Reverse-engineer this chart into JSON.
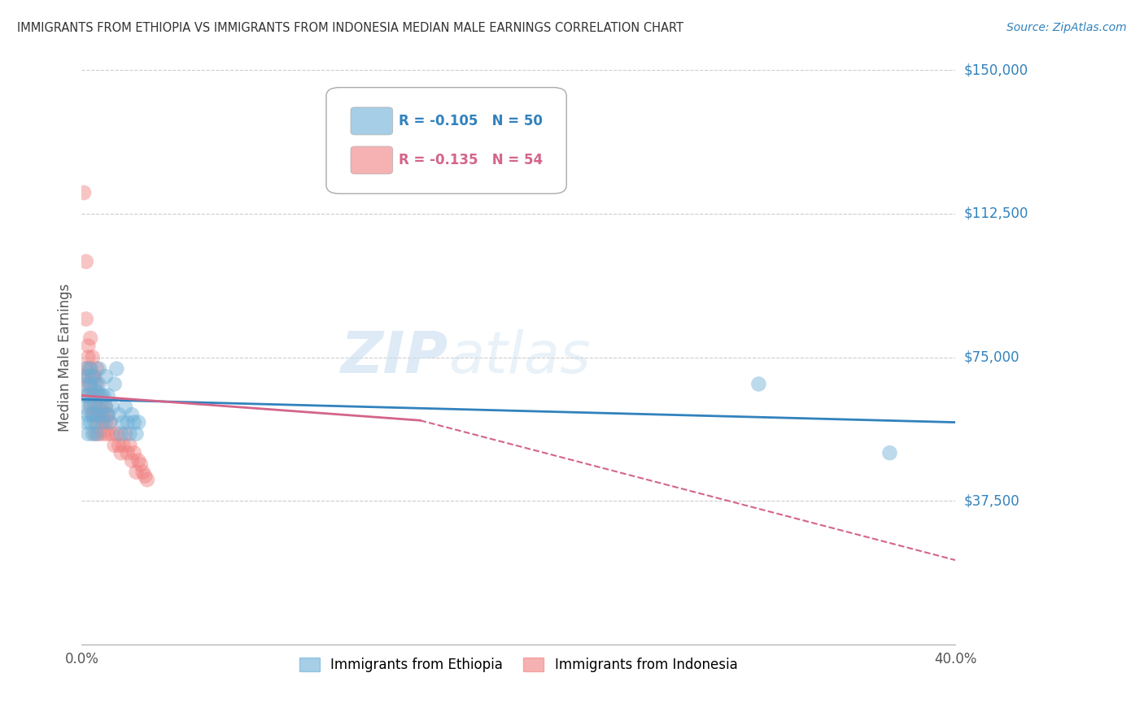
{
  "title": "IMMIGRANTS FROM ETHIOPIA VS IMMIGRANTS FROM INDONESIA MEDIAN MALE EARNINGS CORRELATION CHART",
  "source": "Source: ZipAtlas.com",
  "ylabel": "Median Male Earnings",
  "yticks": [
    0,
    37500,
    75000,
    112500,
    150000
  ],
  "ytick_labels": [
    "",
    "$37,500",
    "$75,000",
    "$112,500",
    "$150,000"
  ],
  "xlim": [
    0.0,
    0.4
  ],
  "ylim": [
    0,
    150000
  ],
  "legend_ethiopia_R": -0.105,
  "legend_ethiopia_N": 50,
  "legend_indonesia_R": -0.135,
  "legend_indonesia_N": 54,
  "scatter_ethiopia_x": [
    0.001,
    0.001,
    0.002,
    0.002,
    0.002,
    0.003,
    0.003,
    0.003,
    0.003,
    0.004,
    0.004,
    0.004,
    0.004,
    0.005,
    0.005,
    0.005,
    0.005,
    0.006,
    0.006,
    0.006,
    0.007,
    0.007,
    0.007,
    0.008,
    0.008,
    0.008,
    0.009,
    0.009,
    0.01,
    0.01,
    0.011,
    0.011,
    0.012,
    0.012,
    0.013,
    0.014,
    0.015,
    0.016,
    0.017,
    0.018,
    0.019,
    0.02,
    0.021,
    0.022,
    0.023,
    0.024,
    0.025,
    0.026,
    0.31,
    0.37
  ],
  "scatter_ethiopia_y": [
    62000,
    68000,
    65000,
    58000,
    72000,
    60000,
    55000,
    70000,
    65000,
    58000,
    63000,
    68000,
    72000,
    55000,
    60000,
    65000,
    70000,
    58000,
    63000,
    68000,
    55000,
    60000,
    66000,
    62000,
    68000,
    72000,
    65000,
    60000,
    58000,
    65000,
    62000,
    70000,
    65000,
    60000,
    58000,
    62000,
    68000,
    72000,
    60000,
    55000,
    58000,
    62000,
    58000,
    55000,
    60000,
    58000,
    55000,
    58000,
    68000,
    50000
  ],
  "scatter_indonesia_x": [
    0.001,
    0.001,
    0.002,
    0.002,
    0.002,
    0.003,
    0.003,
    0.003,
    0.003,
    0.004,
    0.004,
    0.004,
    0.004,
    0.005,
    0.005,
    0.005,
    0.005,
    0.006,
    0.006,
    0.006,
    0.006,
    0.007,
    0.007,
    0.007,
    0.007,
    0.008,
    0.008,
    0.008,
    0.009,
    0.009,
    0.01,
    0.01,
    0.011,
    0.011,
    0.012,
    0.012,
    0.013,
    0.014,
    0.015,
    0.016,
    0.017,
    0.018,
    0.019,
    0.02,
    0.021,
    0.022,
    0.023,
    0.024,
    0.025,
    0.026,
    0.027,
    0.028,
    0.029,
    0.03
  ],
  "scatter_indonesia_y": [
    118000,
    70000,
    100000,
    85000,
    72000,
    78000,
    68000,
    75000,
    65000,
    72000,
    80000,
    68000,
    62000,
    70000,
    65000,
    75000,
    60000,
    65000,
    70000,
    60000,
    55000,
    68000,
    62000,
    72000,
    58000,
    65000,
    60000,
    55000,
    62000,
    58000,
    60000,
    55000,
    58000,
    62000,
    55000,
    60000,
    58000,
    55000,
    52000,
    55000,
    52000,
    50000,
    52000,
    55000,
    50000,
    52000,
    48000,
    50000,
    45000,
    48000,
    47000,
    45000,
    44000,
    43000
  ],
  "trendline_blue_x0": 0.0,
  "trendline_blue_x1": 0.4,
  "trendline_blue_y0": 64000,
  "trendline_blue_y1": 58000,
  "trendline_pink_solid_x0": 0.0,
  "trendline_pink_solid_x1": 0.155,
  "trendline_pink_solid_y0": 65000,
  "trendline_pink_solid_y1": 58500,
  "trendline_pink_dash_x0": 0.155,
  "trendline_pink_dash_x1": 0.4,
  "trendline_pink_dash_y0": 58500,
  "trendline_pink_dash_y1": 22000,
  "watermark_zip": "ZIP",
  "watermark_atlas": "atlas",
  "bg_color": "#ffffff",
  "scatter_color_ethiopia": "#6baed6",
  "scatter_color_indonesia": "#f08080",
  "trend_color_ethiopia": "#3182bd",
  "trend_color_indonesia": "#d4648a",
  "grid_color": "#cccccc",
  "axis_label_color": "#3182bd",
  "title_color": "#333333",
  "xtick_positions": [
    0.0,
    0.08,
    0.16,
    0.24,
    0.32,
    0.4
  ],
  "xtick_labels": [
    "0.0%",
    "",
    "",
    "",
    "",
    "40.0%"
  ]
}
